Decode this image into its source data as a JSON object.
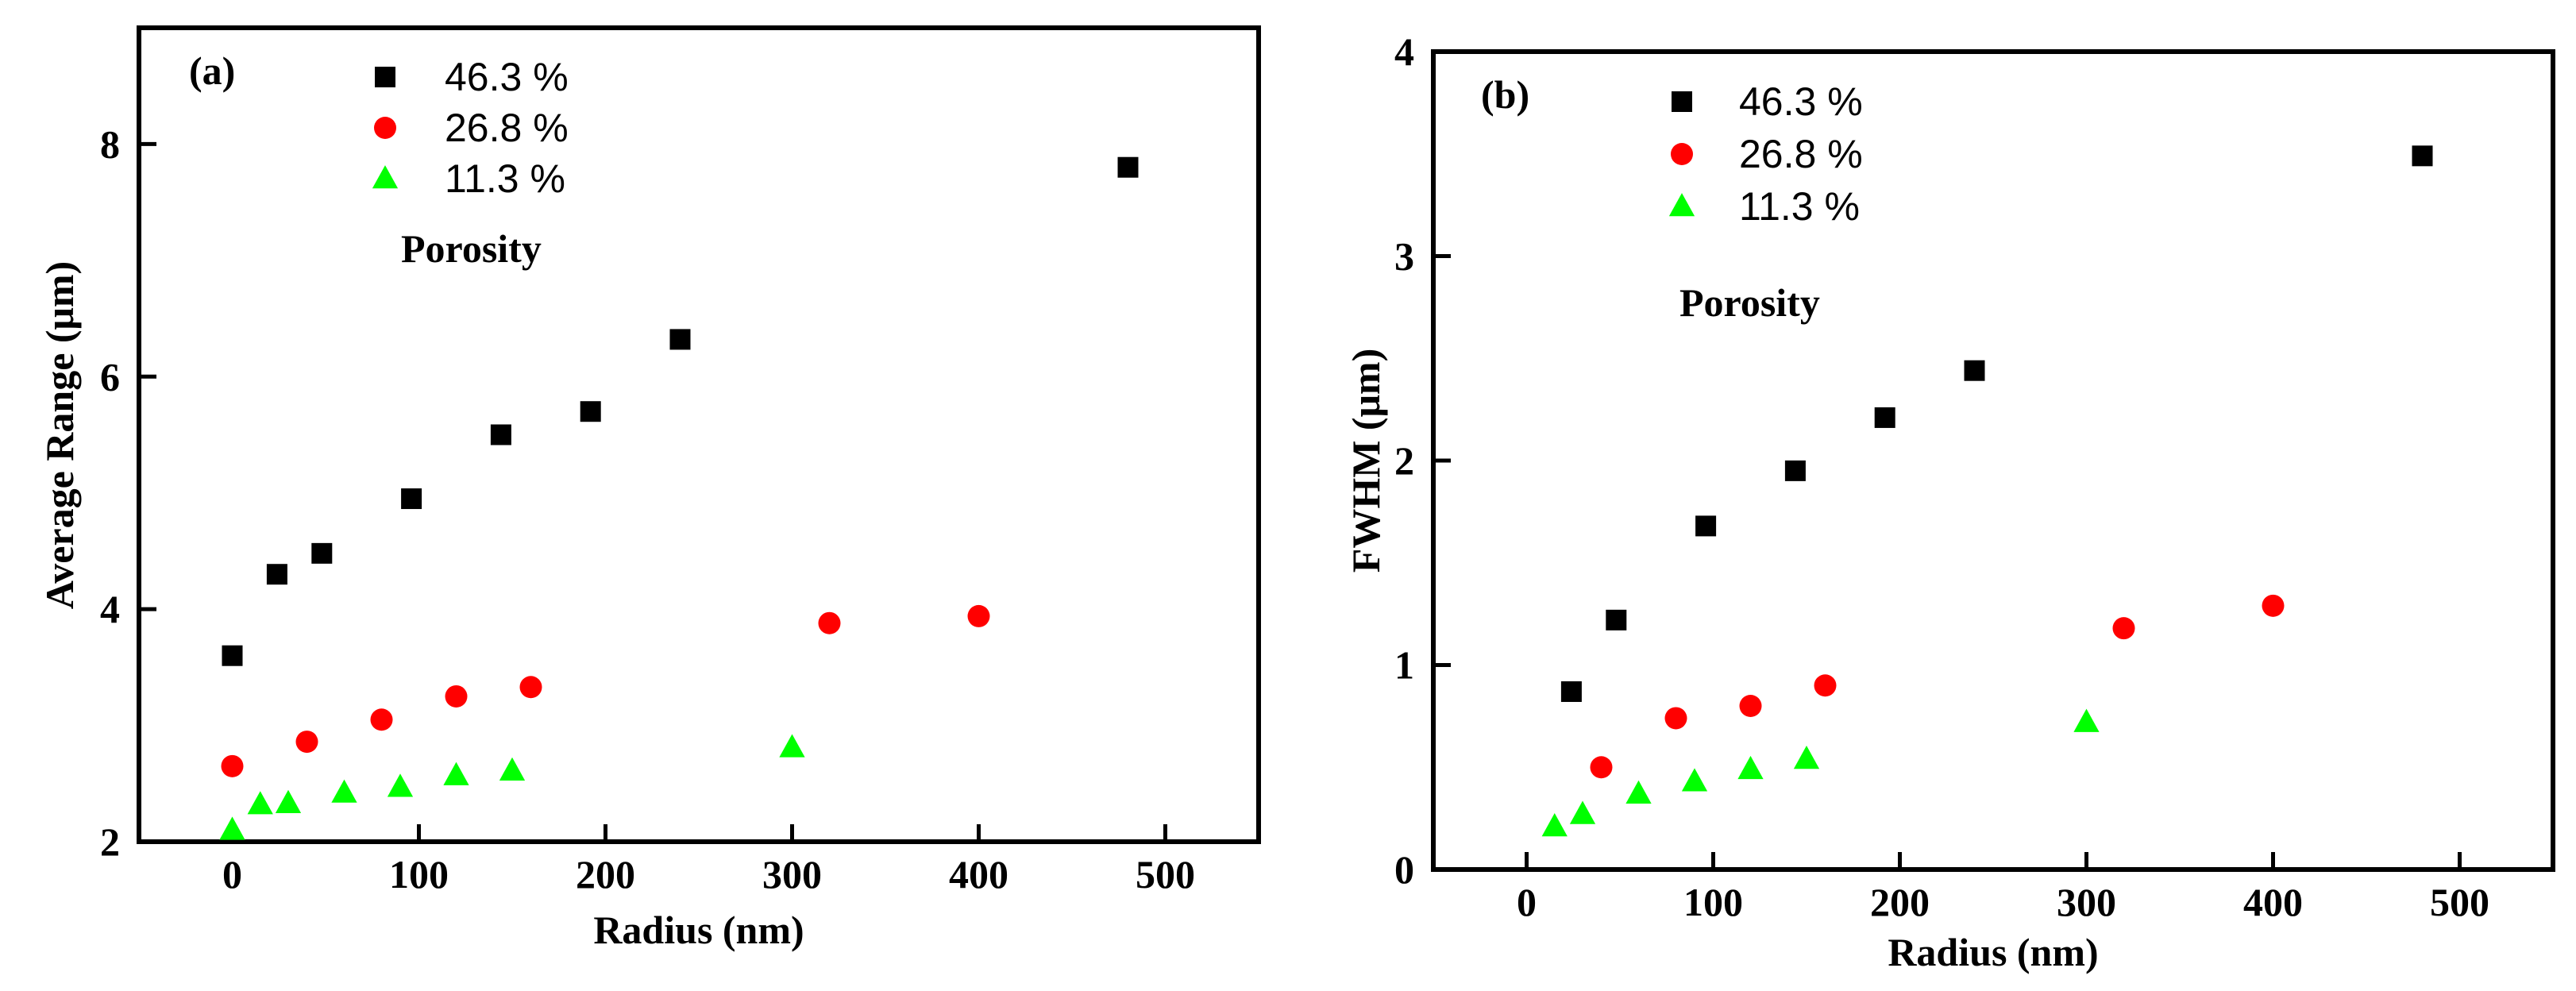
{
  "chart_data": [
    {
      "type": "scatter",
      "panel_label": "(a)",
      "xlabel": "Radius (nm)",
      "ylabel": "Average Range (μm)",
      "xlim": [
        -50,
        550
      ],
      "ylim": [
        2,
        9
      ],
      "x_ticks": [
        0,
        100,
        200,
        300,
        400,
        500
      ],
      "y_ticks": [
        2,
        4,
        6,
        8
      ],
      "legend_title": "Porosity",
      "legend_position": "top-left",
      "series": [
        {
          "name": "46.3 %",
          "marker": "square",
          "color": "#000000",
          "x": [
            0,
            24,
            48,
            96,
            144,
            192,
            240,
            480
          ],
          "y": [
            3.6,
            4.3,
            4.48,
            4.95,
            5.5,
            5.7,
            6.32,
            7.8
          ]
        },
        {
          "name": "26.8 %",
          "marker": "circle",
          "color": "#ff0000",
          "x": [
            0,
            40,
            80,
            120,
            160,
            320,
            400
          ],
          "y": [
            2.65,
            2.86,
            3.05,
            3.25,
            3.33,
            3.88,
            3.94
          ]
        },
        {
          "name": "11.3 %",
          "marker": "triangle",
          "color": "#00ff00",
          "x": [
            0,
            15,
            30,
            60,
            90,
            120,
            150,
            300
          ],
          "y": [
            2.1,
            2.32,
            2.33,
            2.42,
            2.47,
            2.57,
            2.61,
            2.81
          ]
        }
      ]
    },
    {
      "type": "scatter",
      "panel_label": "(b)",
      "xlabel": "Radius (nm)",
      "ylabel": "FWHM (μm)",
      "xlim": [
        -50,
        550
      ],
      "ylim": [
        0,
        4
      ],
      "x_ticks": [
        0,
        100,
        200,
        300,
        400,
        500
      ],
      "y_ticks": [
        0,
        1,
        2,
        3,
        4
      ],
      "legend_title": "Porosity",
      "legend_position": "top-left",
      "series": [
        {
          "name": "46.3 %",
          "marker": "square",
          "color": "#000000",
          "x": [
            24,
            48,
            96,
            144,
            192,
            240,
            480
          ],
          "y": [
            0.87,
            1.22,
            1.68,
            1.95,
            2.21,
            2.44,
            3.49
          ]
        },
        {
          "name": "26.8 %",
          "marker": "circle",
          "color": "#ff0000",
          "x": [
            40,
            80,
            120,
            160,
            320,
            400
          ],
          "y": [
            0.5,
            0.74,
            0.8,
            0.9,
            1.18,
            1.29
          ]
        },
        {
          "name": "11.3 %",
          "marker": "triangle",
          "color": "#00ff00",
          "x": [
            15,
            30,
            60,
            90,
            120,
            150,
            300
          ],
          "y": [
            0.21,
            0.27,
            0.37,
            0.43,
            0.49,
            0.54,
            0.72
          ]
        }
      ]
    }
  ]
}
